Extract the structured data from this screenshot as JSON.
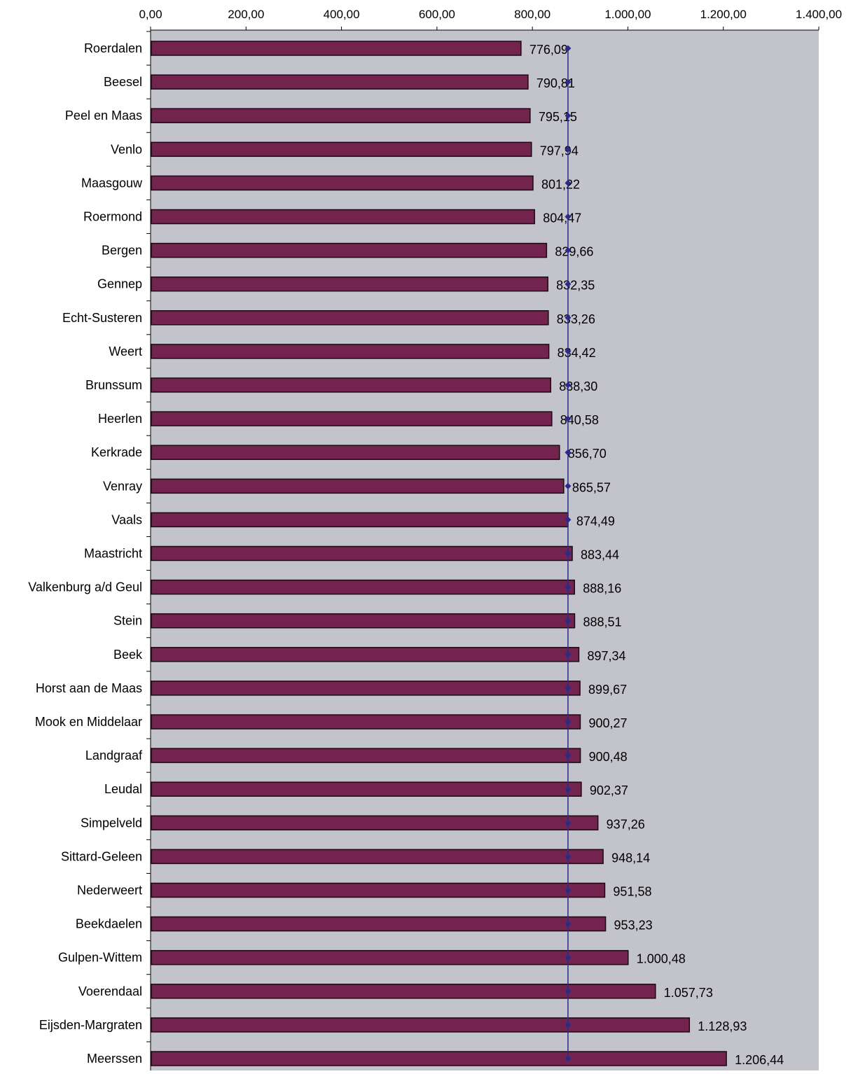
{
  "chart_data": {
    "type": "bar",
    "orientation": "horizontal",
    "title": "",
    "xlabel": "",
    "ylabel": "",
    "xlim": [
      0,
      1400
    ],
    "x_ticks": [
      0,
      200,
      400,
      600,
      800,
      1000,
      1200,
      1400
    ],
    "x_tick_labels": [
      "0,00",
      "200,00",
      "400,00",
      "600,00",
      "800,00",
      "1.000,00",
      "1.200,00",
      "1.400,00"
    ],
    "grid": false,
    "legend": "none",
    "categories": [
      "Roerdalen",
      "Beesel",
      "Peel en Maas",
      "Venlo",
      "Maasgouw",
      "Roermond",
      "Bergen",
      "Gennep",
      "Echt-Susteren",
      "Weert",
      "Brunssum",
      "Heerlen",
      "Kerkrade",
      "Venray",
      "Vaals",
      "Maastricht",
      "Valkenburg a/d Geul",
      "Stein",
      "Beek",
      "Horst aan de Maas",
      "Mook en Middelaar",
      "Landgraaf",
      "Leudal",
      "Simpelveld",
      "Sittard-Geleen",
      "Nederweert",
      "Beekdaelen",
      "Gulpen-Wittem",
      "Voerendaal",
      "Eijsden-Margraten",
      "Meerssen"
    ],
    "values": [
      776.09,
      790.81,
      795.15,
      797.94,
      801.22,
      804.47,
      829.66,
      832.35,
      833.26,
      834.42,
      838.3,
      840.58,
      856.7,
      865.57,
      874.49,
      883.44,
      888.16,
      888.51,
      897.34,
      899.67,
      900.27,
      900.48,
      902.37,
      937.26,
      948.14,
      951.58,
      953.23,
      1000.48,
      1057.73,
      1128.93,
      1206.44
    ],
    "value_labels": [
      "776,09",
      "790,81",
      "795,15",
      "797,94",
      "801,22",
      "804,47",
      "829,66",
      "832,35",
      "833,26",
      "834,42",
      "838,30",
      "840,58",
      "856,70",
      "865,57",
      "874,49",
      "883,44",
      "888,16",
      "888,51",
      "897,34",
      "899,67",
      "900,27",
      "900,48",
      "902,37",
      "937,26",
      "948,14",
      "951,58",
      "953,23",
      "1.000,48",
      "1.057,73",
      "1.128,93",
      "1.206,44"
    ],
    "reference_line": {
      "value": 874.5,
      "marker": "diamond"
    }
  },
  "colors": {
    "plot_background": "#c3c3cb",
    "bar_fill": "#72244e",
    "bar_stroke": "#1a0a12",
    "reference_line": "#2a2a8a",
    "axis": "#000000"
  }
}
